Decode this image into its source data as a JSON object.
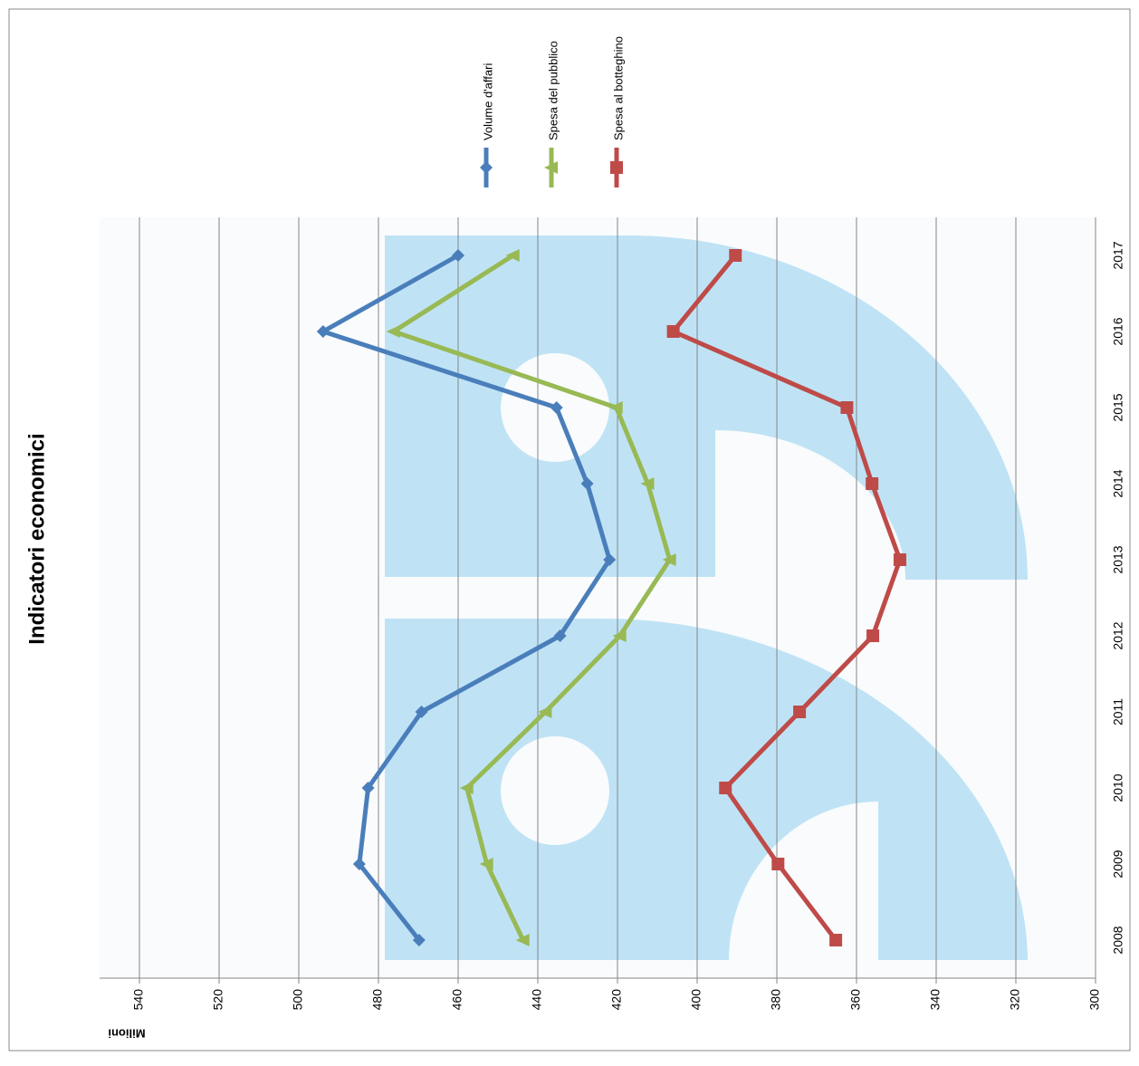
{
  "chart_data": {
    "type": "line",
    "title": "Indicatori economici",
    "y_label": "Milioni",
    "categories": [
      "2008",
      "2009",
      "2010",
      "2011",
      "2012",
      "2013",
      "2014",
      "2015",
      "2016",
      "2017"
    ],
    "series": [
      {
        "name": "Volume d'affari",
        "color": "#4a7ebb",
        "marker": "diamond",
        "values": [
          469.8,
          484.8,
          482.6,
          469.2,
          434.4,
          422,
          427.6,
          435.3,
          493.9,
          460
        ]
      },
      {
        "name": "Spesa del pubblico",
        "color": "#98b954",
        "marker": "triangle",
        "values": [
          443.7,
          452.8,
          457.8,
          438.1,
          419.4,
          406.9,
          412.4,
          420.3,
          476.2,
          446.2
        ]
      },
      {
        "name": "Spesa al botteghino",
        "color": "#be4b48",
        "marker": "square",
        "values": [
          365.2,
          379.7,
          392.9,
          374.3,
          355.9,
          349.1,
          356.1,
          362.4,
          406,
          390.4
        ]
      }
    ],
    "ylim": [
      300,
      550
    ],
    "yticks": [
      300,
      320,
      340,
      360,
      380,
      400,
      420,
      440,
      460,
      480,
      500,
      520,
      540
    ],
    "grid": true
  }
}
